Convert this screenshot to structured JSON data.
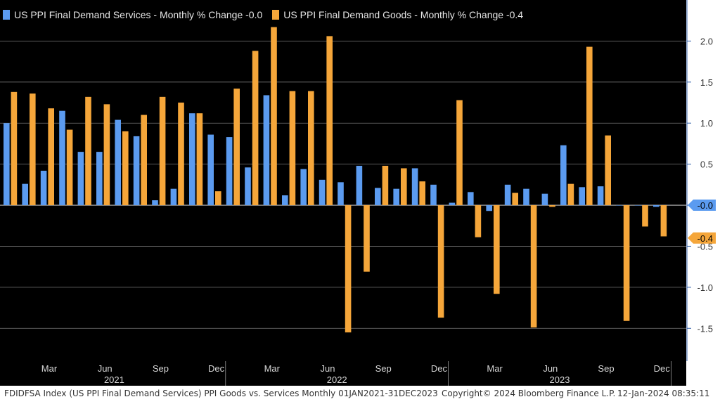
{
  "legend": [
    {
      "label": "US PPI Final Demand Services - Monthly % Change -0.0",
      "color": "#5b9bf0"
    },
    {
      "label": "US PPI Final Demand Goods - Monthly % Change -0.4",
      "color": "#f5a63a"
    }
  ],
  "footer": {
    "left": "FDIDFSA Index (US PPI Final Demand Services) PPI Goods vs. Services  Monthly 01JAN2021-31DEC2023",
    "middle": "Copyright© 2024 Bloomberg Finance L.P.",
    "right": "12-Jan-2024 08:35:11"
  },
  "chart_data": {
    "type": "bar",
    "categories": [
      "2021-01",
      "2021-02",
      "2021-03",
      "2021-04",
      "2021-05",
      "2021-06",
      "2021-07",
      "2021-08",
      "2021-09",
      "2021-10",
      "2021-11",
      "2021-12",
      "2022-01",
      "2022-02",
      "2022-03",
      "2022-04",
      "2022-05",
      "2022-06",
      "2022-07",
      "2022-08",
      "2022-09",
      "2022-10",
      "2022-11",
      "2022-12",
      "2023-01",
      "2023-02",
      "2023-03",
      "2023-04",
      "2023-05",
      "2023-06",
      "2023-07",
      "2023-08",
      "2023-09",
      "2023-10",
      "2023-11",
      "2023-12"
    ],
    "series": [
      {
        "name": "US PPI Final Demand Services - Monthly % Change -0.0",
        "color": "#5b9bf0",
        "values": [
          1.0,
          0.26,
          0.42,
          1.15,
          0.65,
          0.65,
          1.04,
          0.84,
          0.06,
          0.2,
          1.12,
          0.86,
          0.83,
          0.46,
          1.34,
          0.12,
          0.44,
          0.31,
          0.28,
          0.48,
          0.21,
          0.2,
          0.45,
          0.25,
          0.03,
          0.16,
          -0.07,
          0.25,
          0.2,
          0.14,
          0.73,
          0.22,
          0.23,
          0.0,
          0.0,
          -0.02
        ]
      },
      {
        "name": "US PPI Final Demand Goods - Monthly % Change -0.4",
        "color": "#f5a63a",
        "values": [
          1.38,
          1.36,
          1.18,
          0.92,
          1.32,
          1.23,
          0.9,
          1.1,
          1.32,
          1.25,
          1.12,
          0.17,
          1.42,
          1.88,
          2.17,
          1.39,
          1.39,
          2.06,
          -1.55,
          -0.81,
          0.48,
          0.45,
          0.29,
          -1.37,
          1.28,
          -0.39,
          -1.08,
          0.15,
          -1.49,
          -0.02,
          0.26,
          1.93,
          0.85,
          -1.41,
          -0.26,
          -0.38
        ]
      }
    ],
    "ylim": [
      -1.9,
      2.5
    ],
    "yticks": [
      -1.5,
      -1.0,
      -0.5,
      0.0,
      0.5,
      1.0,
      1.5,
      2.0
    ],
    "ytick_labels": [
      "-1.5",
      "-1.0",
      "-0.5",
      "0.0",
      "0.5",
      "1.0",
      "1.5",
      "2.0"
    ],
    "x_month_ticks": [
      {
        "label": "Mar",
        "index": 2
      },
      {
        "label": "Jun",
        "index": 5
      },
      {
        "label": "Sep",
        "index": 8
      },
      {
        "label": "Dec",
        "index": 11
      },
      {
        "label": "Mar",
        "index": 14
      },
      {
        "label": "Jun",
        "index": 17
      },
      {
        "label": "Sep",
        "index": 20
      },
      {
        "label": "Dec",
        "index": 23
      },
      {
        "label": "Mar",
        "index": 26
      },
      {
        "label": "Jun",
        "index": 29
      },
      {
        "label": "Sep",
        "index": 32
      },
      {
        "label": "Dec",
        "index": 35
      }
    ],
    "x_year_labels": [
      {
        "label": "2021",
        "index": 5.5
      },
      {
        "label": "2022",
        "index": 17.5
      },
      {
        "label": "2023",
        "index": 29.5
      }
    ],
    "last_value_tags": [
      {
        "label": "-0.0",
        "value": 0.0,
        "color": "#5b9bf0"
      },
      {
        "label": "-0.4",
        "value": -0.4,
        "color": "#f5a63a"
      }
    ],
    "grid": true,
    "legend_position": "top-left",
    "background": "#000000"
  }
}
